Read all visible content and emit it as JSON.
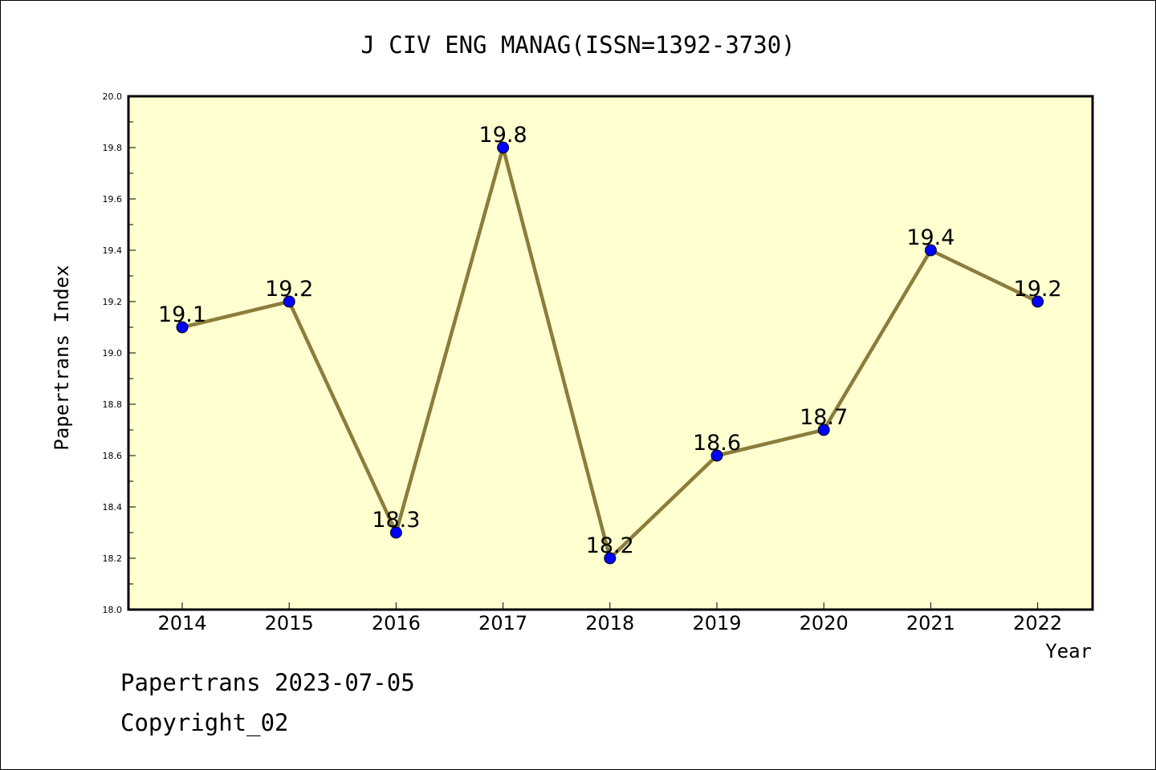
{
  "chart_data": {
    "type": "line",
    "title": "J CIV ENG MANAG(ISSN=1392-3730)",
    "xlabel": "Year",
    "ylabel": "Papertrans Index",
    "categories": [
      "2014",
      "2015",
      "2016",
      "2017",
      "2018",
      "2019",
      "2020",
      "2021",
      "2022"
    ],
    "values": [
      19.1,
      19.2,
      18.3,
      19.8,
      18.2,
      18.6,
      18.7,
      19.4,
      19.2
    ],
    "data_labels": [
      "19.1",
      "19.2",
      "18.3",
      "19.8",
      "18.2",
      "18.6",
      "18.7",
      "19.4",
      "19.2"
    ],
    "ylim": [
      18.0,
      20.0
    ],
    "yticks": [
      "18.0",
      "18.2",
      "18.4",
      "18.6",
      "18.8",
      "19.0",
      "19.2",
      "19.4",
      "19.6",
      "19.8",
      "20.0"
    ],
    "grid": false,
    "colors": {
      "plot_background": "#ffffd0",
      "line": "#8b7d3a",
      "marker": "#0000ff"
    }
  },
  "footer": {
    "date_line": "Papertrans 2023-07-05",
    "copyright": "Copyright_02"
  }
}
